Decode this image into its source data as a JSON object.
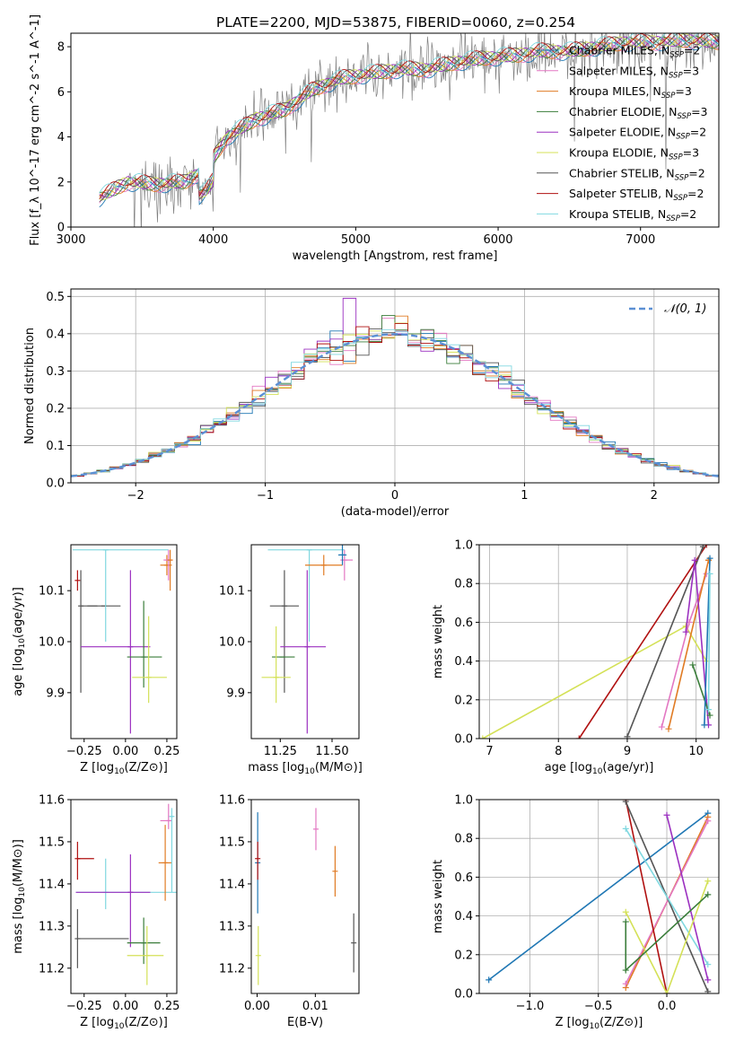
{
  "figure_title": "PLATE=2200, MJD=53875, FIBERID=0060, z=0.254",
  "colors": {
    "chabrier_miles": "#1f77b4",
    "salpeter_miles": "#e377c2",
    "kroupa_miles": "#e07b24",
    "chabrier_elodie": "#3a7d3a",
    "salpeter_elodie": "#9b30c0",
    "kroupa_elodie": "#d4e157",
    "chabrier_stelib": "#555555",
    "salpeter_stelib": "#b01010",
    "kroupa_stelib": "#80d8e0",
    "data_spectrum": "#808080",
    "normal_curve": "#5b8fd4",
    "grid": "#b0b0b0"
  },
  "chart_data": [
    {
      "type": "line",
      "name": "spectrum",
      "xlabel": "wavelength [Angstrom, rest frame]",
      "ylabel": "Flux [f_λ 10^-17 erg cm^-2 s^-1 A^-1]",
      "xlim": [
        3000,
        7550
      ],
      "ylim": [
        0,
        8.6
      ],
      "xticks": [
        "3000",
        "4000",
        "5000",
        "6000",
        "7000"
      ],
      "yticks": [
        "0",
        "2",
        "4",
        "6",
        "8"
      ],
      "legend_position": "top-right",
      "legend": [
        {
          "label": "Chabrier MILES, N",
          "sub": "SSP",
          "tail": "=2",
          "color_key": "chabrier_miles"
        },
        {
          "label": "Salpeter MILES, N",
          "sub": "SSP",
          "tail": "=3",
          "color_key": "salpeter_miles"
        },
        {
          "label": "Kroupa MILES, N",
          "sub": "SSP",
          "tail": "=3",
          "color_key": "kroupa_miles"
        },
        {
          "label": "Chabrier ELODIE, N",
          "sub": "SSP",
          "tail": "=3",
          "color_key": "chabrier_elodie"
        },
        {
          "label": "Salpeter ELODIE, N",
          "sub": "SSP",
          "tail": "=2",
          "color_key": "salpeter_elodie"
        },
        {
          "label": "Kroupa ELODIE, N",
          "sub": "SSP",
          "tail": "=3",
          "color_key": "kroupa_elodie"
        },
        {
          "label": "Chabrier STELIB, N",
          "sub": "SSP",
          "tail": "=2",
          "color_key": "chabrier_stelib"
        },
        {
          "label": "Salpeter STELIB, N",
          "sub": "SSP",
          "tail": "=2",
          "color_key": "salpeter_stelib"
        },
        {
          "label": "Kroupa STELIB, N",
          "sub": "SSP",
          "tail": "=2",
          "color_key": "kroupa_stelib"
        }
      ],
      "model_continuum": {
        "x": [
          3200,
          3400,
          3600,
          3800,
          3950,
          4100,
          4300,
          4500,
          4700,
          4900,
          5100,
          5300,
          5500,
          5700,
          5900,
          6100,
          6300,
          6500,
          6700,
          6900,
          7100,
          7300,
          7550
        ],
        "y": [
          1.3,
          2.0,
          1.9,
          2.0,
          2.6,
          4.0,
          4.8,
          5.2,
          6.1,
          6.6,
          6.8,
          7.0,
          7.0,
          7.3,
          7.5,
          7.6,
          7.8,
          7.8,
          8.0,
          8.2,
          8.2,
          8.3,
          8.2
        ]
      }
    },
    {
      "type": "histogram",
      "name": "residuals",
      "xlabel": "(data-model)/error",
      "ylabel": "Normed distribution",
      "xlim": [
        -2.5,
        2.5
      ],
      "ylim": [
        0,
        0.52
      ],
      "xticks": [
        {
          "v": -2,
          "t": "−2"
        },
        {
          "v": -1,
          "t": "−1"
        },
        {
          "v": 0,
          "t": "0"
        },
        {
          "v": 1,
          "t": "1"
        },
        {
          "v": 2,
          "t": "2"
        }
      ],
      "yticks": [
        {
          "v": 0,
          "t": "0.0"
        },
        {
          "v": 0.1,
          "t": "0.1"
        },
        {
          "v": 0.2,
          "t": "0.2"
        },
        {
          "v": 0.3,
          "t": "0.3"
        },
        {
          "v": 0.4,
          "t": "0.4"
        },
        {
          "v": 0.5,
          "t": "0.5"
        }
      ],
      "legend_label": "𝒩(0, 1)",
      "legend_position": "top-right"
    },
    {
      "type": "scatter",
      "name": "age-vs-Z",
      "xlabel": "Z [log10(Z/Z⊙)]",
      "ylabel": "age  [log10(age/yr)]",
      "xlim": [
        -0.33,
        0.31
      ],
      "ylim": [
        9.81,
        10.19
      ],
      "xticks": [
        {
          "v": -0.25,
          "t": "−0.25"
        },
        {
          "v": 0,
          "t": "0.00"
        },
        {
          "v": 0.25,
          "t": "0.25"
        }
      ],
      "yticks": [
        {
          "v": 9.9,
          "t": "9.9"
        },
        {
          "v": 10.0,
          "t": "10.0"
        },
        {
          "v": 10.1,
          "t": "10.1"
        }
      ],
      "points": [
        {
          "c": "salpeter_stelib",
          "x": -0.29,
          "y": 10.12,
          "xerr": [
            0,
            0
          ],
          "yerr": [
            0.02,
            0.02
          ]
        },
        {
          "c": "chabrier_stelib",
          "x": -0.27,
          "y": 10.07,
          "xerr": [
            0,
            0.1
          ],
          "yerr": [
            0.17,
            0.07
          ]
        },
        {
          "c": "chabrier_stelib",
          "x": -0.13,
          "y": 10.07,
          "xerr": [
            0.1,
            0.1
          ],
          "yerr": [
            0,
            0
          ]
        },
        {
          "c": "kroupa_stelib",
          "x": -0.12,
          "y": 10.18,
          "xerr": [
            0.2,
            0.38
          ],
          "yerr": [
            0.18,
            0
          ]
        },
        {
          "c": "salpeter_elodie",
          "x": 0.03,
          "y": 9.99,
          "xerr": [
            0.3,
            0.12
          ],
          "yerr": [
            0.17,
            0.15
          ]
        },
        {
          "c": "chabrier_elodie",
          "x": 0.11,
          "y": 9.97,
          "xerr": [
            0.1,
            0.11
          ],
          "yerr": [
            0.06,
            0.11
          ]
        },
        {
          "c": "kroupa_elodie",
          "x": 0.14,
          "y": 9.93,
          "xerr": [
            0.1,
            0.11
          ],
          "yerr": [
            0.05,
            0.12
          ]
        },
        {
          "c": "kroupa_miles",
          "x": 0.25,
          "y": 10.15,
          "xerr": [
            0.04,
            0.03
          ],
          "yerr": [
            0.02,
            0.02
          ]
        },
        {
          "c": "salpeter_miles",
          "x": 0.26,
          "y": 10.16,
          "xerr": [
            0.03,
            0.02
          ],
          "yerr": [
            0.04,
            0.02
          ]
        },
        {
          "c": "kroupa_miles",
          "x": 0.27,
          "y": 10.16,
          "xerr": [
            0,
            0
          ],
          "yerr": [
            0.06,
            0.02
          ]
        }
      ]
    },
    {
      "type": "scatter",
      "name": "age-vs-mass",
      "xlabel": "mass [log10(M/M⊙)]",
      "ylabel": "",
      "xlim": [
        11.11,
        11.63
      ],
      "ylim": [
        9.81,
        10.19
      ],
      "xticks": [
        {
          "v": 11.25,
          "t": "11.25"
        },
        {
          "v": 11.5,
          "t": "11.50"
        }
      ],
      "yticks": [
        {
          "v": 9.9,
          "t": "9.9"
        },
        {
          "v": 10.0,
          "t": "10.0"
        },
        {
          "v": 10.1,
          "t": "10.1"
        }
      ],
      "points": [
        {
          "c": "chabrier_stelib",
          "x": 11.27,
          "y": 10.07,
          "xerr": [
            0.07,
            0.07
          ],
          "yerr": [
            0.17,
            0.07
          ]
        },
        {
          "c": "chabrier_elodie",
          "x": 11.26,
          "y": 9.97,
          "xerr": [
            0.05,
            0.06
          ],
          "yerr": [
            0,
            0
          ]
        },
        {
          "c": "kroupa_elodie",
          "x": 11.23,
          "y": 9.93,
          "xerr": [
            0.07,
            0.07
          ],
          "yerr": [
            0.05,
            0.1
          ]
        },
        {
          "c": "salpeter_elodie",
          "x": 11.38,
          "y": 9.99,
          "xerr": [
            0.13,
            0.09
          ],
          "yerr": [
            0.17,
            0.15
          ]
        },
        {
          "c": "kroupa_stelib",
          "x": 11.39,
          "y": 10.18,
          "xerr": [
            0.2,
            0.17
          ],
          "yerr": [
            0.18,
            0
          ]
        },
        {
          "c": "kroupa_miles",
          "x": 11.46,
          "y": 10.15,
          "xerr": [
            0.09,
            0.09
          ],
          "yerr": [
            0.02,
            0.02
          ]
        },
        {
          "c": "salpeter_miles",
          "x": 11.56,
          "y": 10.16,
          "xerr": [
            0.02,
            0.04
          ],
          "yerr": [
            0.04,
            0.02
          ]
        },
        {
          "c": "chabrier_miles",
          "x": 11.55,
          "y": 10.17,
          "xerr": [
            0.02,
            0.02
          ],
          "yerr": [
            0.02,
            0.02
          ]
        }
      ]
    },
    {
      "type": "line",
      "name": "mass-weight-vs-age",
      "xlabel": "age  [log10(age/yr)]",
      "ylabel": "mass weight",
      "xlim": [
        6.85,
        10.33
      ],
      "ylim": [
        0,
        1
      ],
      "xticks": [
        {
          "v": 7,
          "t": "7"
        },
        {
          "v": 8,
          "t": "8"
        },
        {
          "v": 9,
          "t": "9"
        },
        {
          "v": 10,
          "t": "10"
        }
      ],
      "yticks": [
        {
          "v": 0,
          "t": "0.0"
        },
        {
          "v": 0.2,
          "t": "0.2"
        },
        {
          "v": 0.4,
          "t": "0.4"
        },
        {
          "v": 0.6,
          "t": "0.6"
        },
        {
          "v": 0.8,
          "t": "0.8"
        },
        {
          "v": 1,
          "t": "1.0"
        }
      ],
      "series": [
        {
          "c": "kroupa_elodie",
          "x": [
            6.9,
            9.85,
            10.15
          ],
          "y": [
            0.0,
            0.58,
            0.4
          ]
        },
        {
          "c": "salpeter_stelib",
          "x": [
            8.3,
            10.15
          ],
          "y": [
            0.0,
            1.0
          ]
        },
        {
          "c": "chabrier_stelib",
          "x": [
            9.0,
            10.1
          ],
          "y": [
            0.01,
            0.99
          ]
        },
        {
          "c": "salpeter_miles",
          "x": [
            9.5,
            9.9,
            10.15
          ],
          "y": [
            0.06,
            0.6,
            0.85
          ]
        },
        {
          "c": "kroupa_miles",
          "x": [
            9.6,
            10.18,
            10.18
          ],
          "y": [
            0.05,
            0.92,
            0.92
          ]
        },
        {
          "c": "salpeter_elodie",
          "x": [
            9.85,
            9.98,
            10.18
          ],
          "y": [
            0.55,
            0.92,
            0.07
          ]
        },
        {
          "c": "chabrier_elodie",
          "x": [
            9.95,
            10.2
          ],
          "y": [
            0.38,
            0.12
          ]
        },
        {
          "c": "chabrier_miles",
          "x": [
            10.12,
            10.2
          ],
          "y": [
            0.07,
            0.93
          ]
        },
        {
          "c": "kroupa_stelib",
          "x": [
            10.18,
            10.2
          ],
          "y": [
            0.15,
            0.85
          ]
        }
      ]
    },
    {
      "type": "scatter",
      "name": "mass-vs-Z",
      "xlabel": "Z [log10(Z/Z⊙)]",
      "ylabel": "mass [log10(M/M⊙)]",
      "xlim": [
        -0.33,
        0.31
      ],
      "ylim": [
        11.14,
        11.6
      ],
      "xticks": [
        {
          "v": -0.25,
          "t": "−0.25"
        },
        {
          "v": 0,
          "t": "0.00"
        },
        {
          "v": 0.25,
          "t": "0.25"
        }
      ],
      "yticks": [
        {
          "v": 11.2,
          "t": "11.2"
        },
        {
          "v": 11.3,
          "t": "11.3"
        },
        {
          "v": 11.4,
          "t": "11.4"
        },
        {
          "v": 11.5,
          "t": "11.5"
        },
        {
          "v": 11.6,
          "t": "11.6"
        }
      ],
      "points": [
        {
          "c": "salpeter_stelib",
          "x": -0.29,
          "y": 11.46,
          "xerr": [
            0,
            0.1
          ],
          "yerr": [
            0.05,
            0.04
          ]
        },
        {
          "c": "chabrier_stelib",
          "x": -0.29,
          "y": 11.27,
          "xerr": [
            0,
            0.31
          ],
          "yerr": [
            0.07,
            0.07
          ]
        },
        {
          "c": "kroupa_stelib",
          "x": -0.12,
          "y": 11.38,
          "xerr": [
            0.18,
            0.43
          ],
          "yerr": [
            0.04,
            0.08
          ]
        },
        {
          "c": "salpeter_elodie",
          "x": 0.03,
          "y": 11.38,
          "xerr": [
            0.33,
            0.12
          ],
          "yerr": [
            0.13,
            0.09
          ]
        },
        {
          "c": "chabrier_elodie",
          "x": 0.11,
          "y": 11.26,
          "xerr": [
            0.1,
            0.1
          ],
          "yerr": [
            0.05,
            0.06
          ]
        },
        {
          "c": "kroupa_elodie",
          "x": 0.13,
          "y": 11.23,
          "xerr": [
            0.12,
            0.1
          ],
          "yerr": [
            0.07,
            0.07
          ]
        },
        {
          "c": "kroupa_miles",
          "x": 0.24,
          "y": 11.45,
          "xerr": [
            0.04,
            0.04
          ],
          "yerr": [
            0.09,
            0.09
          ]
        },
        {
          "c": "salpeter_miles",
          "x": 0.26,
          "y": 11.55,
          "xerr": [
            0.05,
            0.02
          ],
          "yerr": [
            0.02,
            0.04
          ]
        },
        {
          "c": "kroupa_stelib",
          "x": 0.28,
          "y": 11.56,
          "xerr": [
            0.01,
            0.01
          ],
          "yerr": [
            0.18,
            0.02
          ]
        }
      ]
    },
    {
      "type": "scatter",
      "name": "mass-vs-ebv",
      "xlabel": "E(B-V)",
      "ylabel": "",
      "xlim": [
        -0.001,
        0.0175
      ],
      "ylim": [
        11.14,
        11.6
      ],
      "xticks": [
        {
          "v": 0,
          "t": "0.00"
        },
        {
          "v": 0.01,
          "t": "0.01"
        }
      ],
      "yticks": [
        {
          "v": 11.2,
          "t": "11.2"
        },
        {
          "v": 11.3,
          "t": "11.3"
        },
        {
          "v": 11.4,
          "t": "11.4"
        },
        {
          "v": 11.5,
          "t": "11.5"
        },
        {
          "v": 11.6,
          "t": "11.6"
        }
      ],
      "points": [
        {
          "c": "chabrier_miles",
          "x": 0.0001,
          "y": 11.45,
          "xerr": [
            0,
            0
          ],
          "yerr": [
            0.12,
            0.12
          ]
        },
        {
          "c": "salpeter_stelib",
          "x": 0.0001,
          "y": 11.46,
          "xerr": [
            0,
            0
          ],
          "yerr": [
            0.05,
            0.04
          ]
        },
        {
          "c": "kroupa_elodie",
          "x": 0.0002,
          "y": 11.23,
          "xerr": [
            0,
            0
          ],
          "yerr": [
            0.07,
            0.07
          ]
        },
        {
          "c": "salpeter_miles",
          "x": 0.0101,
          "y": 11.53,
          "xerr": [
            0,
            0
          ],
          "yerr": [
            0.05,
            0.05
          ]
        },
        {
          "c": "kroupa_miles",
          "x": 0.0134,
          "y": 11.43,
          "xerr": [
            0,
            0
          ],
          "yerr": [
            0.06,
            0.06
          ]
        },
        {
          "c": "chabrier_stelib",
          "x": 0.0166,
          "y": 11.26,
          "xerr": [
            0,
            0
          ],
          "yerr": [
            0.07,
            0.07
          ]
        }
      ]
    },
    {
      "type": "line",
      "name": "mass-weight-vs-Z",
      "xlabel": "Z [log10(Z/Z⊙)]",
      "ylabel": "mass weight",
      "xlim": [
        -1.37,
        0.38
      ],
      "ylim": [
        0,
        1
      ],
      "xticks": [
        {
          "v": -1,
          "t": "−1.0"
        },
        {
          "v": -0.5,
          "t": "−0.5"
        },
        {
          "v": 0,
          "t": "0.0"
        }
      ],
      "yticks": [
        {
          "v": 0,
          "t": "0.0"
        },
        {
          "v": 0.2,
          "t": "0.2"
        },
        {
          "v": 0.4,
          "t": "0.4"
        },
        {
          "v": 0.6,
          "t": "0.6"
        },
        {
          "v": 0.8,
          "t": "0.8"
        },
        {
          "v": 1,
          "t": "1.0"
        }
      ],
      "series": [
        {
          "c": "chabrier_miles",
          "x": [
            -1.3,
            0.3
          ],
          "y": [
            0.07,
            0.93
          ]
        },
        {
          "c": "kroupa_miles",
          "x": [
            -0.3,
            0.3
          ],
          "y": [
            0.03,
            0.91
          ]
        },
        {
          "c": "salpeter_miles",
          "x": [
            -0.3,
            0.3
          ],
          "y": [
            0.05,
            0.89
          ]
        },
        {
          "c": "salpeter_stelib",
          "x": [
            -0.3,
            0.0
          ],
          "y": [
            1.0,
            0.0
          ]
        },
        {
          "c": "chabrier_stelib",
          "x": [
            -0.3,
            0.3
          ],
          "y": [
            0.99,
            0.01
          ]
        },
        {
          "c": "kroupa_stelib",
          "x": [
            -0.3,
            0.3
          ],
          "y": [
            0.85,
            0.15
          ]
        },
        {
          "c": "salpeter_elodie",
          "x": [
            0.0,
            0.3
          ],
          "y": [
            0.92,
            0.07
          ]
        },
        {
          "c": "kroupa_elodie",
          "x": [
            -0.3,
            0.0,
            0.3
          ],
          "y": [
            0.42,
            0.0,
            0.58
          ]
        },
        {
          "c": "chabrier_elodie",
          "x": [
            -0.3,
            -0.3,
            0.3
          ],
          "y": [
            0.37,
            0.12,
            0.51
          ]
        }
      ]
    }
  ]
}
